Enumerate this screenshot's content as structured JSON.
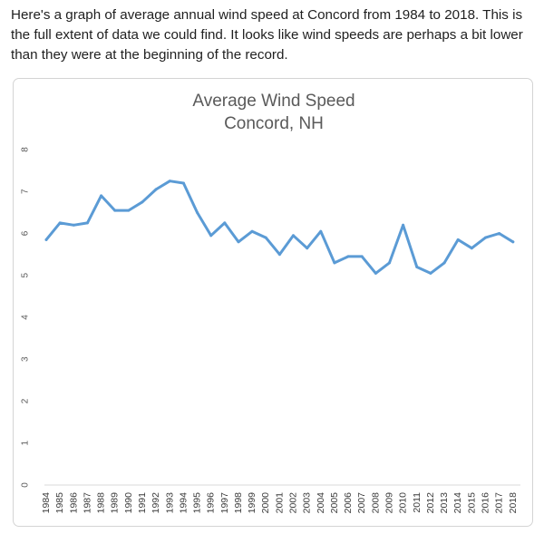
{
  "post": {
    "text": "Here's a graph of average annual wind speed at Concord from 1984 to 2018. This is the full extent of data we could find.  It looks like wind speeds are perhaps a bit lower than they were at the beginning of the record."
  },
  "chart_data": {
    "type": "line",
    "title": "Average Wind Speed",
    "subtitle": "Concord, NH",
    "xlabel": "",
    "ylabel": "",
    "ylim": [
      0,
      8
    ],
    "yticks": [
      "0",
      "1",
      "2",
      "3",
      "4",
      "5",
      "6",
      "7",
      "8"
    ],
    "grid": false,
    "legend": "none",
    "line_color": "#5b9bd5",
    "categories": [
      "1984",
      "1985",
      "1986",
      "1987",
      "1988",
      "1989",
      "1990",
      "1991",
      "1992",
      "1993",
      "1994",
      "1995",
      "1996",
      "1997",
      "1998",
      "1999",
      "2000",
      "2001",
      "2002",
      "2003",
      "2004",
      "2005",
      "2006",
      "2007",
      "2008",
      "2009",
      "2010",
      "2011",
      "2012",
      "2013",
      "2014",
      "2015",
      "2016",
      "2017",
      "2018"
    ],
    "series": [
      {
        "values": [
          5.85,
          6.25,
          6.2,
          6.25,
          6.9,
          6.55,
          6.55,
          6.75,
          7.05,
          7.25,
          7.2,
          6.5,
          5.95,
          6.25,
          5.8,
          6.05,
          5.9,
          5.5,
          5.95,
          5.65,
          6.05,
          5.3,
          5.45,
          5.45,
          5.05,
          5.3,
          6.2,
          5.2,
          5.05,
          5.3,
          5.85,
          5.65,
          5.9,
          6.0,
          5.8
        ]
      }
    ]
  }
}
